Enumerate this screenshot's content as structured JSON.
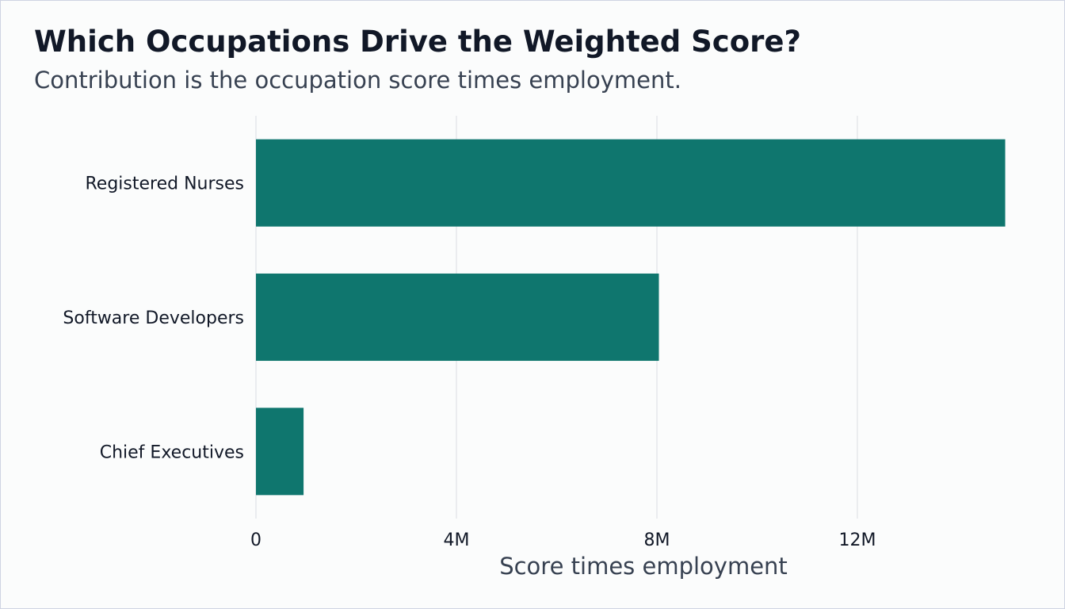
{
  "chart_data": {
    "type": "bar",
    "orientation": "horizontal",
    "title": "Which Occupations Drive the Weighted Score?",
    "subtitle": "Contribution is the occupation score times employment.",
    "xlabel": "Score times employment",
    "ylabel": "",
    "categories": [
      "Registered Nurses",
      "Software Developers",
      "Chief Executives"
    ],
    "values": [
      14950000,
      8040000,
      950000
    ],
    "xlim": [
      0,
      15400000
    ],
    "xticks": [
      0,
      4000000,
      8000000,
      12000000
    ],
    "xtick_labels": [
      "0",
      "4M",
      "8M",
      "12M"
    ],
    "grid": "vertical",
    "legend": "none",
    "bar_color": "#0f766e",
    "grid_color": "#e5e7eb"
  }
}
